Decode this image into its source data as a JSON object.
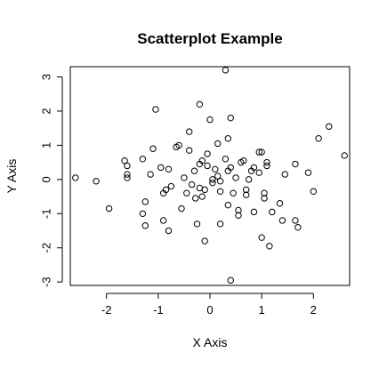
{
  "chart_data": {
    "type": "scatter",
    "title": "Scatterplot Example",
    "xlabel": "X Axis",
    "ylabel": "Y Axis",
    "xlim": [
      -2.7,
      2.7
    ],
    "ylim": [
      -3.1,
      3.3
    ],
    "xticks": [
      -2,
      -1,
      0,
      1,
      2
    ],
    "yticks": [
      -3,
      -2,
      -1,
      0,
      1,
      2,
      3
    ],
    "xtick_labels": [
      "-2",
      "-1",
      "0",
      "1",
      "2"
    ],
    "ytick_labels": [
      "-3",
      "-2",
      "-1",
      "0",
      "1",
      "2",
      "3"
    ],
    "grid": false,
    "marker": "open-circle",
    "marker_color": "#000000",
    "points": [
      {
        "x": -2.6,
        "y": 0.05
      },
      {
        "x": -2.2,
        "y": -0.05
      },
      {
        "x": -1.95,
        "y": -0.85
      },
      {
        "x": -1.65,
        "y": 0.55
      },
      {
        "x": -1.6,
        "y": 0.4
      },
      {
        "x": -1.6,
        "y": 0.15
      },
      {
        "x": -1.6,
        "y": 0.05
      },
      {
        "x": -1.3,
        "y": 0.6
      },
      {
        "x": -1.3,
        "y": -1.0
      },
      {
        "x": -1.25,
        "y": -0.65
      },
      {
        "x": -1.25,
        "y": -1.35
      },
      {
        "x": -1.15,
        "y": 0.15
      },
      {
        "x": -1.1,
        "y": 0.9
      },
      {
        "x": -1.05,
        "y": 2.05
      },
      {
        "x": -0.95,
        "y": 0.35
      },
      {
        "x": -0.9,
        "y": -0.4
      },
      {
        "x": -0.9,
        "y": -1.2
      },
      {
        "x": -0.85,
        "y": -0.3
      },
      {
        "x": -0.8,
        "y": 0.3
      },
      {
        "x": -0.8,
        "y": -1.5
      },
      {
        "x": -0.75,
        "y": -0.2
      },
      {
        "x": -0.65,
        "y": 0.95
      },
      {
        "x": -0.6,
        "y": 1.0
      },
      {
        "x": -0.55,
        "y": -0.85
      },
      {
        "x": -0.5,
        "y": 0.05
      },
      {
        "x": -0.45,
        "y": -0.4
      },
      {
        "x": -0.4,
        "y": 1.4
      },
      {
        "x": -0.4,
        "y": 0.85
      },
      {
        "x": -0.35,
        "y": -0.15
      },
      {
        "x": -0.3,
        "y": 0.25
      },
      {
        "x": -0.28,
        "y": -0.55
      },
      {
        "x": -0.25,
        "y": -1.3
      },
      {
        "x": -0.2,
        "y": 2.2
      },
      {
        "x": -0.2,
        "y": 0.45
      },
      {
        "x": -0.2,
        "y": -0.25
      },
      {
        "x": -0.15,
        "y": 0.55
      },
      {
        "x": -0.15,
        "y": -0.5
      },
      {
        "x": -0.1,
        "y": -1.8
      },
      {
        "x": -0.1,
        "y": -0.3
      },
      {
        "x": -0.05,
        "y": 0.75
      },
      {
        "x": -0.05,
        "y": 0.4
      },
      {
        "x": 0.0,
        "y": 1.75
      },
      {
        "x": 0.05,
        "y": 0.0
      },
      {
        "x": 0.05,
        "y": -0.1
      },
      {
        "x": 0.1,
        "y": 0.3
      },
      {
        "x": 0.15,
        "y": 1.05
      },
      {
        "x": 0.15,
        "y": 0.1
      },
      {
        "x": 0.2,
        "y": -0.05
      },
      {
        "x": 0.2,
        "y": -0.35
      },
      {
        "x": 0.2,
        "y": -1.3
      },
      {
        "x": 0.3,
        "y": 3.2
      },
      {
        "x": 0.3,
        "y": 0.6
      },
      {
        "x": 0.35,
        "y": 1.2
      },
      {
        "x": 0.35,
        "y": 0.25
      },
      {
        "x": 0.35,
        "y": -0.75
      },
      {
        "x": 0.4,
        "y": 1.8
      },
      {
        "x": 0.4,
        "y": 0.35
      },
      {
        "x": 0.4,
        "y": -2.95
      },
      {
        "x": 0.45,
        "y": -0.4
      },
      {
        "x": 0.5,
        "y": 0.05
      },
      {
        "x": 0.55,
        "y": -0.9
      },
      {
        "x": 0.55,
        "y": -1.05
      },
      {
        "x": 0.6,
        "y": 0.5
      },
      {
        "x": 0.65,
        "y": 0.55
      },
      {
        "x": 0.7,
        "y": -0.3
      },
      {
        "x": 0.7,
        "y": -0.45
      },
      {
        "x": 0.75,
        "y": 0.0
      },
      {
        "x": 0.8,
        "y": 0.25
      },
      {
        "x": 0.85,
        "y": 0.35
      },
      {
        "x": 0.85,
        "y": -0.95
      },
      {
        "x": 0.95,
        "y": 0.8
      },
      {
        "x": 0.95,
        "y": 0.2
      },
      {
        "x": 1.0,
        "y": 0.8
      },
      {
        "x": 1.0,
        "y": -1.7
      },
      {
        "x": 1.05,
        "y": -0.4
      },
      {
        "x": 1.05,
        "y": -0.55
      },
      {
        "x": 1.1,
        "y": 0.4
      },
      {
        "x": 1.1,
        "y": 0.5
      },
      {
        "x": 1.15,
        "y": -1.95
      },
      {
        "x": 1.2,
        "y": -0.95
      },
      {
        "x": 1.35,
        "y": -0.7
      },
      {
        "x": 1.4,
        "y": -1.2
      },
      {
        "x": 1.45,
        "y": 0.15
      },
      {
        "x": 1.65,
        "y": 0.45
      },
      {
        "x": 1.65,
        "y": -1.2
      },
      {
        "x": 1.7,
        "y": -1.4
      },
      {
        "x": 1.9,
        "y": 0.2
      },
      {
        "x": 2.0,
        "y": -0.35
      },
      {
        "x": 2.1,
        "y": 1.2
      },
      {
        "x": 2.3,
        "y": 1.55
      },
      {
        "x": 2.6,
        "y": 0.7
      }
    ]
  }
}
